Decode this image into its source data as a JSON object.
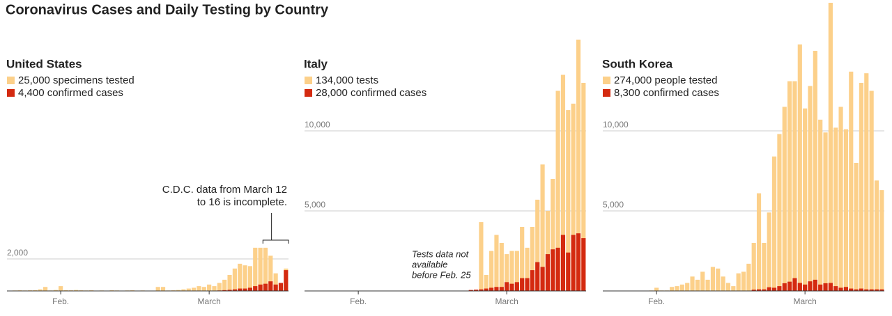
{
  "title": "Coronavirus Cases and Daily Testing by Country",
  "chart_data": [
    {
      "type": "bar",
      "title": "United States",
      "categories": [
        null,
        null,
        null,
        null,
        null,
        null,
        null,
        null,
        null,
        null,
        "Feb.",
        null,
        null,
        null,
        null,
        null,
        null,
        null,
        null,
        null,
        null,
        null,
        null,
        null,
        null,
        null,
        null,
        null,
        null,
        null,
        null,
        null,
        null,
        null,
        null,
        null,
        null,
        null,
        null,
        "March",
        null,
        null,
        null,
        null,
        null,
        null,
        null,
        null,
        null,
        null,
        null,
        null,
        null,
        null,
        null
      ],
      "series": [
        {
          "name": "25,000 specimens tested",
          "color": "#fcd08a",
          "values": [
            0,
            30,
            40,
            30,
            40,
            50,
            100,
            250,
            30,
            60,
            300,
            50,
            40,
            60,
            40,
            30,
            40,
            20,
            30,
            20,
            40,
            30,
            20,
            30,
            40,
            20,
            30,
            20,
            20,
            250,
            250,
            30,
            40,
            60,
            100,
            150,
            200,
            300,
            250,
            400,
            300,
            500,
            700,
            1000,
            1400,
            1700,
            1600,
            1550,
            2700,
            2700,
            2700,
            2200,
            1100,
            500,
            1400
          ]
        },
        {
          "name": "4,400 confirmed cases",
          "color": "#d42a10",
          "values": [
            0,
            0,
            0,
            0,
            0,
            0,
            0,
            0,
            0,
            0,
            0,
            0,
            0,
            0,
            0,
            0,
            0,
            0,
            0,
            0,
            0,
            0,
            0,
            0,
            0,
            0,
            0,
            0,
            0,
            0,
            0,
            0,
            0,
            0,
            0,
            0,
            0,
            0,
            0,
            0,
            20,
            30,
            50,
            70,
            100,
            150,
            150,
            200,
            300,
            400,
            450,
            600,
            400,
            500,
            1300
          ]
        }
      ],
      "ylim": [
        0,
        18000
      ],
      "yticks": [
        {
          "value": 2000,
          "label": "2,000"
        }
      ],
      "grid": true,
      "annotation": [
        "C.D.C. data from March 12",
        "to 16 is incomplete."
      ]
    },
    {
      "type": "bar",
      "title": "Italy",
      "categories": [
        null,
        null,
        null,
        null,
        null,
        null,
        null,
        null,
        null,
        null,
        "Feb.",
        null,
        null,
        null,
        null,
        null,
        null,
        null,
        null,
        null,
        null,
        null,
        null,
        null,
        null,
        null,
        null,
        null,
        null,
        null,
        null,
        null,
        null,
        null,
        null,
        null,
        null,
        null,
        null,
        "March",
        null,
        null,
        null,
        null,
        null,
        null,
        null,
        null,
        null,
        null,
        null,
        null,
        null,
        null,
        null
      ],
      "series": [
        {
          "name": "134,000 tests",
          "color": "#fcd08a",
          "values": [
            null,
            null,
            null,
            null,
            null,
            null,
            null,
            null,
            null,
            null,
            null,
            null,
            null,
            null,
            null,
            null,
            null,
            null,
            null,
            null,
            null,
            null,
            null,
            null,
            null,
            null,
            null,
            null,
            null,
            null,
            null,
            null,
            null,
            null,
            4300,
            1000,
            2500,
            3500,
            3000,
            2300,
            2500,
            2500,
            4000,
            2700,
            4000,
            5700,
            7900,
            5000,
            7000,
            12500,
            13500,
            11300,
            11700,
            15700,
            13000
          ]
        },
        {
          "name": "28,000 confirmed cases",
          "color": "#d42a10",
          "values": [
            0,
            0,
            0,
            0,
            0,
            0,
            0,
            0,
            0,
            0,
            0,
            0,
            0,
            0,
            0,
            0,
            0,
            0,
            0,
            0,
            0,
            0,
            0,
            0,
            0,
            0,
            0,
            0,
            0,
            0,
            0,
            20,
            60,
            80,
            100,
            150,
            200,
            250,
            250,
            550,
            450,
            550,
            800,
            800,
            1300,
            1800,
            1500,
            2300,
            2600,
            2700,
            3500,
            2400,
            3500,
            3600,
            3300
          ]
        }
      ],
      "ylim": [
        0,
        18000
      ],
      "yticks": [
        {
          "value": 5000,
          "label": "5,000"
        },
        {
          "value": 10000,
          "label": "10,000"
        }
      ],
      "grid": true,
      "annotation": [
        "Tests data not",
        "available",
        "before Feb. 25"
      ]
    },
    {
      "type": "bar",
      "title": "South Korea",
      "categories": [
        null,
        null,
        null,
        null,
        null,
        null,
        null,
        null,
        null,
        null,
        "Feb.",
        null,
        null,
        null,
        null,
        null,
        null,
        null,
        null,
        null,
        null,
        null,
        null,
        null,
        null,
        null,
        null,
        null,
        null,
        null,
        null,
        null,
        null,
        null,
        null,
        null,
        null,
        null,
        null,
        "March",
        null,
        null,
        null,
        null,
        null,
        null,
        null,
        null,
        null,
        null,
        null,
        null,
        null,
        null,
        null
      ],
      "series": [
        {
          "name": "274,000 people tested",
          "color": "#fcd08a",
          "values": [
            0,
            0,
            10,
            10,
            10,
            10,
            0,
            10,
            10,
            30,
            200,
            30,
            30,
            250,
            300,
            400,
            500,
            900,
            700,
            1200,
            700,
            1500,
            1400,
            900,
            500,
            300,
            1100,
            1200,
            1700,
            3000,
            6100,
            3000,
            4900,
            8400,
            9800,
            11500,
            13100,
            13100,
            15400,
            11400,
            12800,
            15000,
            10700,
            9900,
            18000,
            10200,
            11500,
            10100,
            13700,
            8000,
            13000,
            13600,
            12500,
            6900,
            6300
          ]
        },
        {
          "name": "8,300 confirmed cases",
          "color": "#d42a10",
          "values": [
            0,
            0,
            0,
            0,
            0,
            0,
            0,
            0,
            0,
            0,
            0,
            0,
            0,
            0,
            0,
            0,
            0,
            0,
            0,
            0,
            0,
            0,
            0,
            0,
            0,
            0,
            0,
            0,
            20,
            80,
            100,
            100,
            230,
            200,
            300,
            480,
            580,
            800,
            500,
            400,
            600,
            700,
            400,
            480,
            500,
            300,
            200,
            250,
            150,
            100,
            150,
            100,
            100,
            100,
            100
          ]
        }
      ],
      "ylim": [
        0,
        18000
      ],
      "yticks": [
        {
          "value": 5000,
          "label": "5,000"
        },
        {
          "value": 10000,
          "label": "10,000"
        }
      ],
      "grid": true
    }
  ]
}
